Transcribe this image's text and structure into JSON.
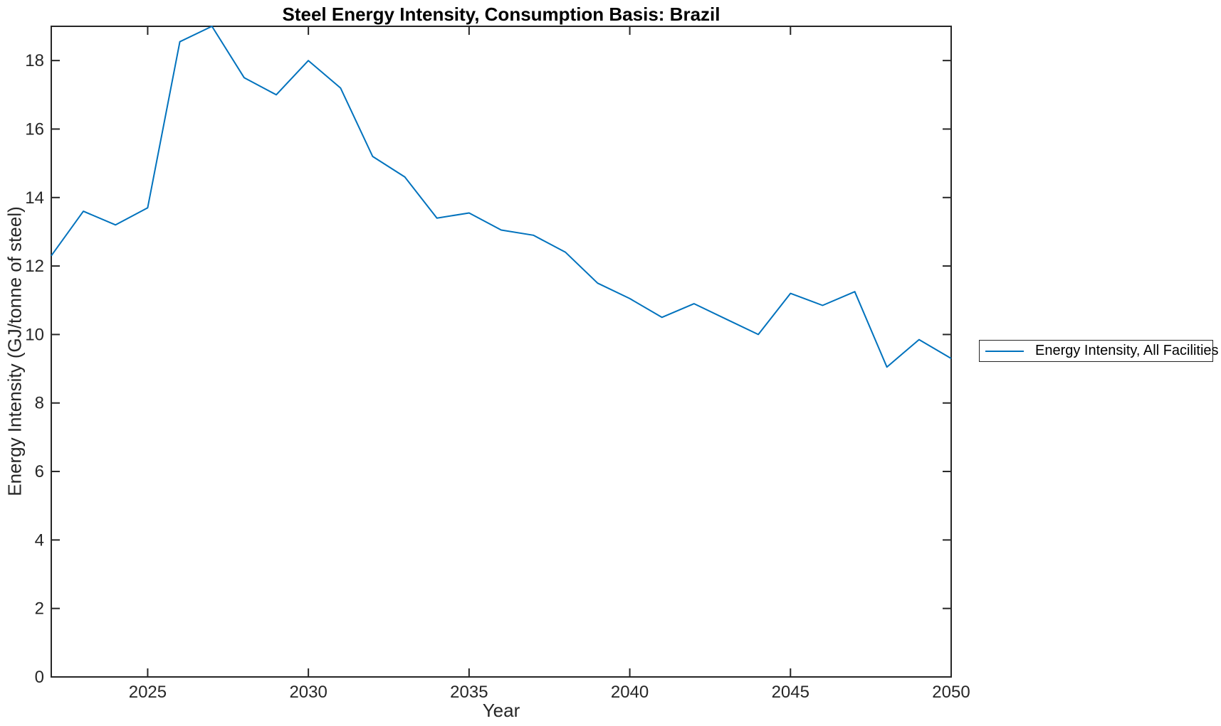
{
  "figure": {
    "background": "#ffffff"
  },
  "chart_data": {
    "type": "line",
    "title": "Steel Energy Intensity, Consumption Basis: Brazil",
    "xlabel": "Year",
    "ylabel": "Energy Intensity (GJ/tonne of steel)",
    "xlim": [
      2022,
      2050
    ],
    "ylim": [
      0,
      19
    ],
    "xticks": [
      2025,
      2030,
      2035,
      2040,
      2045,
      2050
    ],
    "yticks": [
      0,
      2,
      4,
      6,
      8,
      10,
      12,
      14,
      16,
      18
    ],
    "grid": false,
    "legend_position": "outside-right",
    "axis_color": "#262626",
    "tick_label_color": "#262626",
    "x": [
      2022,
      2023,
      2024,
      2025,
      2026,
      2027,
      2028,
      2029,
      2030,
      2031,
      2032,
      2033,
      2034,
      2035,
      2036,
      2037,
      2038,
      2039,
      2040,
      2041,
      2042,
      2043,
      2044,
      2045,
      2046,
      2047,
      2048,
      2049,
      2050
    ],
    "series": [
      {
        "name": "Energy Intensity, All Facilities",
        "color": "#0072BD",
        "values": [
          12.3,
          13.6,
          13.2,
          13.7,
          18.55,
          19.0,
          17.5,
          17.0,
          18.0,
          17.2,
          15.2,
          14.6,
          13.4,
          13.55,
          13.05,
          12.9,
          12.4,
          11.5,
          11.05,
          10.5,
          10.9,
          10.45,
          10.0,
          11.2,
          10.85,
          11.25,
          9.05,
          9.85,
          9.3
        ]
      }
    ]
  }
}
